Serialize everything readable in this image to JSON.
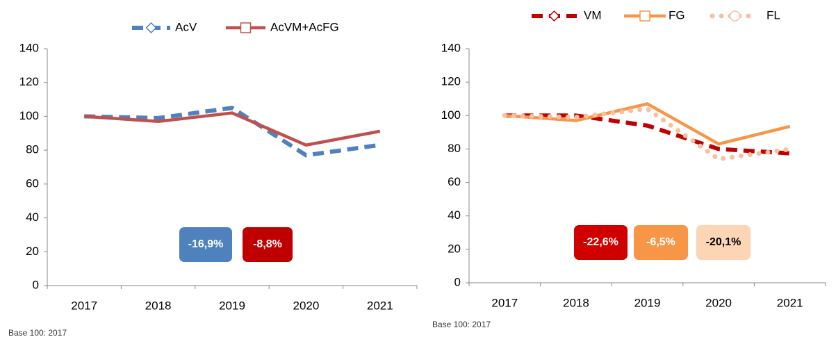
{
  "chart_data": [
    {
      "type": "line",
      "categories": [
        "2017",
        "2018",
        "2019",
        "2020",
        "2021"
      ],
      "series": [
        {
          "name": "AcV",
          "color": "#4f81bd",
          "style": "dashed",
          "marker": "diamond",
          "values": [
            100,
            99,
            105,
            77,
            83.1
          ]
        },
        {
          "name": "AcVM+AcFG",
          "color": "#c0504d",
          "style": "solid",
          "marker": "square",
          "values": [
            100,
            97,
            102,
            83,
            91.2
          ]
        }
      ],
      "ylim": [
        0,
        140
      ],
      "yticks": [
        0,
        20,
        40,
        60,
        80,
        100,
        120,
        140
      ],
      "annotations": [
        {
          "text": "-16,9%",
          "color": "#4f81bd",
          "text_color": "#ffffff"
        },
        {
          "text": "-8,8%",
          "color": "#c00000",
          "text_color": "#ffffff"
        }
      ],
      "footnote": "Base 100: 2017"
    },
    {
      "type": "line",
      "categories": [
        "2017",
        "2018",
        "2019",
        "2020",
        "2021"
      ],
      "series": [
        {
          "name": "VM",
          "color": "#c00000",
          "style": "dashed",
          "marker": "diamond",
          "values": [
            100,
            100,
            94,
            80,
            77.4
          ]
        },
        {
          "name": "FG",
          "color": "#f79646",
          "style": "solid",
          "marker": "square",
          "values": [
            100,
            97,
            107,
            83,
            93.5
          ]
        },
        {
          "name": "FL",
          "color": "#f8c0a0",
          "style": "dotted",
          "marker": "circle",
          "values": [
            100,
            99,
            104,
            74,
            79.9
          ]
        }
      ],
      "ylim": [
        0,
        140
      ],
      "yticks": [
        0,
        20,
        40,
        60,
        80,
        100,
        120,
        140
      ],
      "annotations": [
        {
          "text": "-22,6%",
          "color": "#d00000",
          "text_color": "#ffffff"
        },
        {
          "text": "-6,5%",
          "color": "#f79646",
          "text_color": "#ffffff"
        },
        {
          "text": "-20,1%",
          "color": "#fcd5b4",
          "text_color": "#000000"
        }
      ],
      "footnote": "Base 100: 2017"
    }
  ]
}
